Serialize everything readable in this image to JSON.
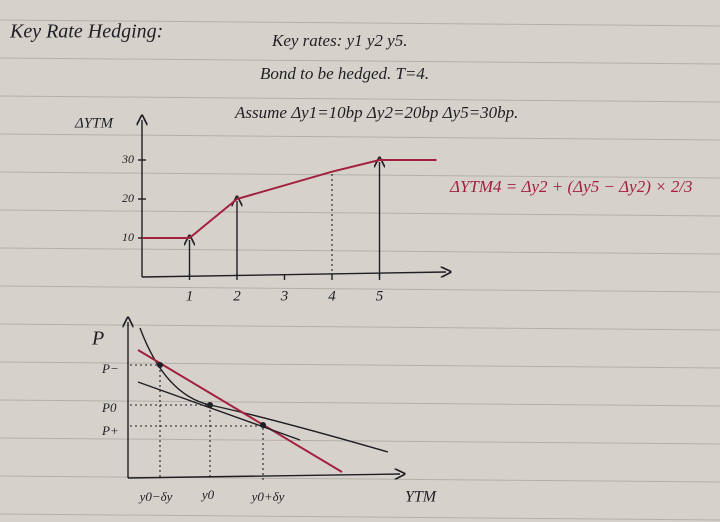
{
  "title": "Key Rate Hedging:",
  "notes": [
    "Key rates: y1 y2 y5.",
    "Bond to be hedged. T=4.",
    "Assume Δy1=10bp Δy2=20bp Δy5=30bp."
  ],
  "formula": "ΔYTM4 = Δy2 + (Δy5 − Δy2) × 2/3",
  "rate_chart": {
    "y_label": "ΔYTM",
    "xlim": [
      0,
      6.4
    ],
    "ylim": [
      0,
      40
    ],
    "xticks": [
      1,
      2,
      3,
      4,
      5
    ],
    "yticks": [
      10,
      20,
      30
    ],
    "x": [
      0,
      1,
      2,
      4,
      5,
      6.2
    ],
    "values": [
      10,
      10,
      20,
      27,
      30,
      30
    ]
  },
  "price_chart": {
    "y_label": "P",
    "x_label": "YTM",
    "y_tick_labels": [
      "P−",
      "P0",
      "P+"
    ],
    "x_tick_labels": [
      "y0−δy",
      "y0",
      "y0+δy"
    ]
  }
}
